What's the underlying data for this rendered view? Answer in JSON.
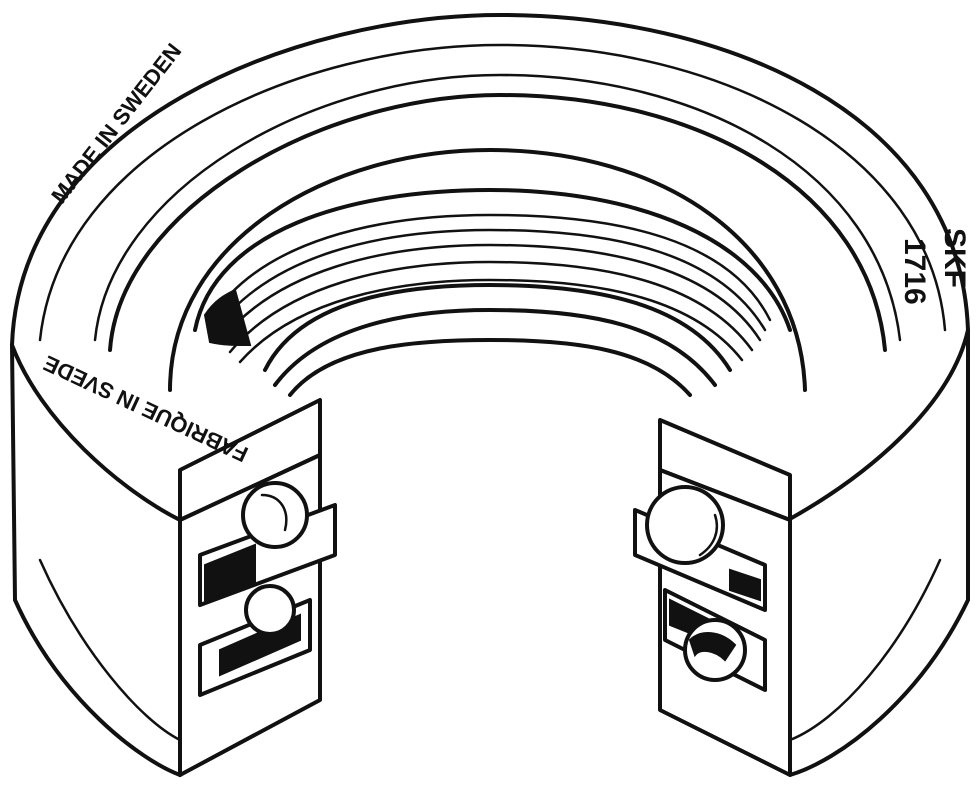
{
  "illustration": {
    "subject": "",
    "colors": {
      "ink": "#111111",
      "paper": "#ffffff"
    },
    "markings": {
      "made_in": "MADE IN SWEDEN",
      "fabrique": "FABRIQUE IN SVEDE",
      "brand": "SKF",
      "number": "1716"
    }
  }
}
